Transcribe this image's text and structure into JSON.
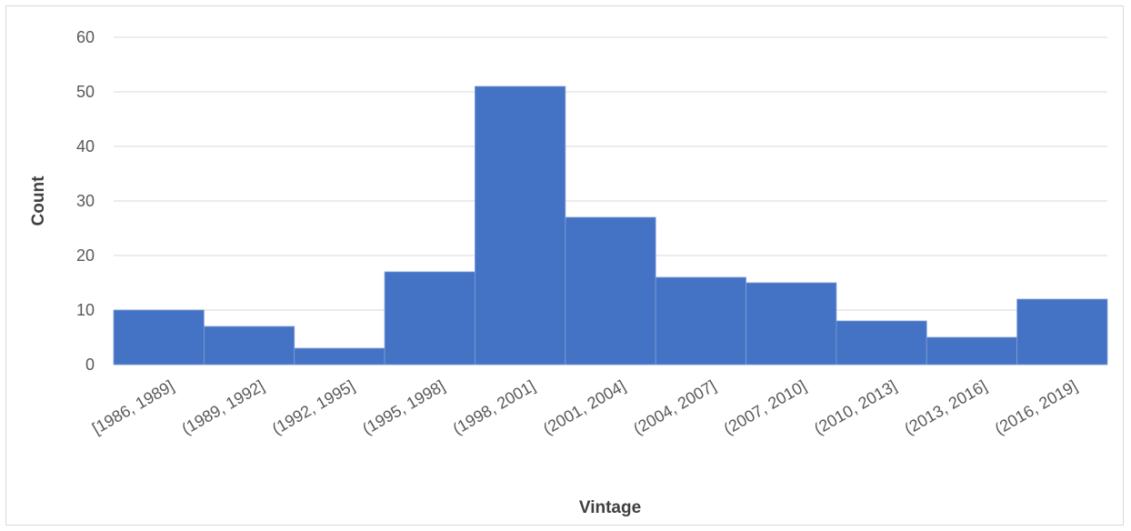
{
  "chart_data": {
    "type": "bar",
    "title": "",
    "xlabel": "Vintage",
    "ylabel": "Count",
    "ylim": [
      0,
      60
    ],
    "yticks": [
      0,
      10,
      20,
      30,
      40,
      50,
      60
    ],
    "grid": "horizontal",
    "legend": "none",
    "bar_color": "#4472C4",
    "categories": [
      "[1986, 1989]",
      "(1989, 1992]",
      "(1992, 1995]",
      "(1995, 1998]",
      "(1998, 2001]",
      "(2001, 2004]",
      "(2004, 2007]",
      "(2007, 2010]",
      "(2010, 2013]",
      "(2013, 2016]",
      "(2016, 2019]"
    ],
    "values": [
      10,
      7,
      3,
      17,
      51,
      27,
      16,
      15,
      8,
      5,
      12
    ]
  }
}
